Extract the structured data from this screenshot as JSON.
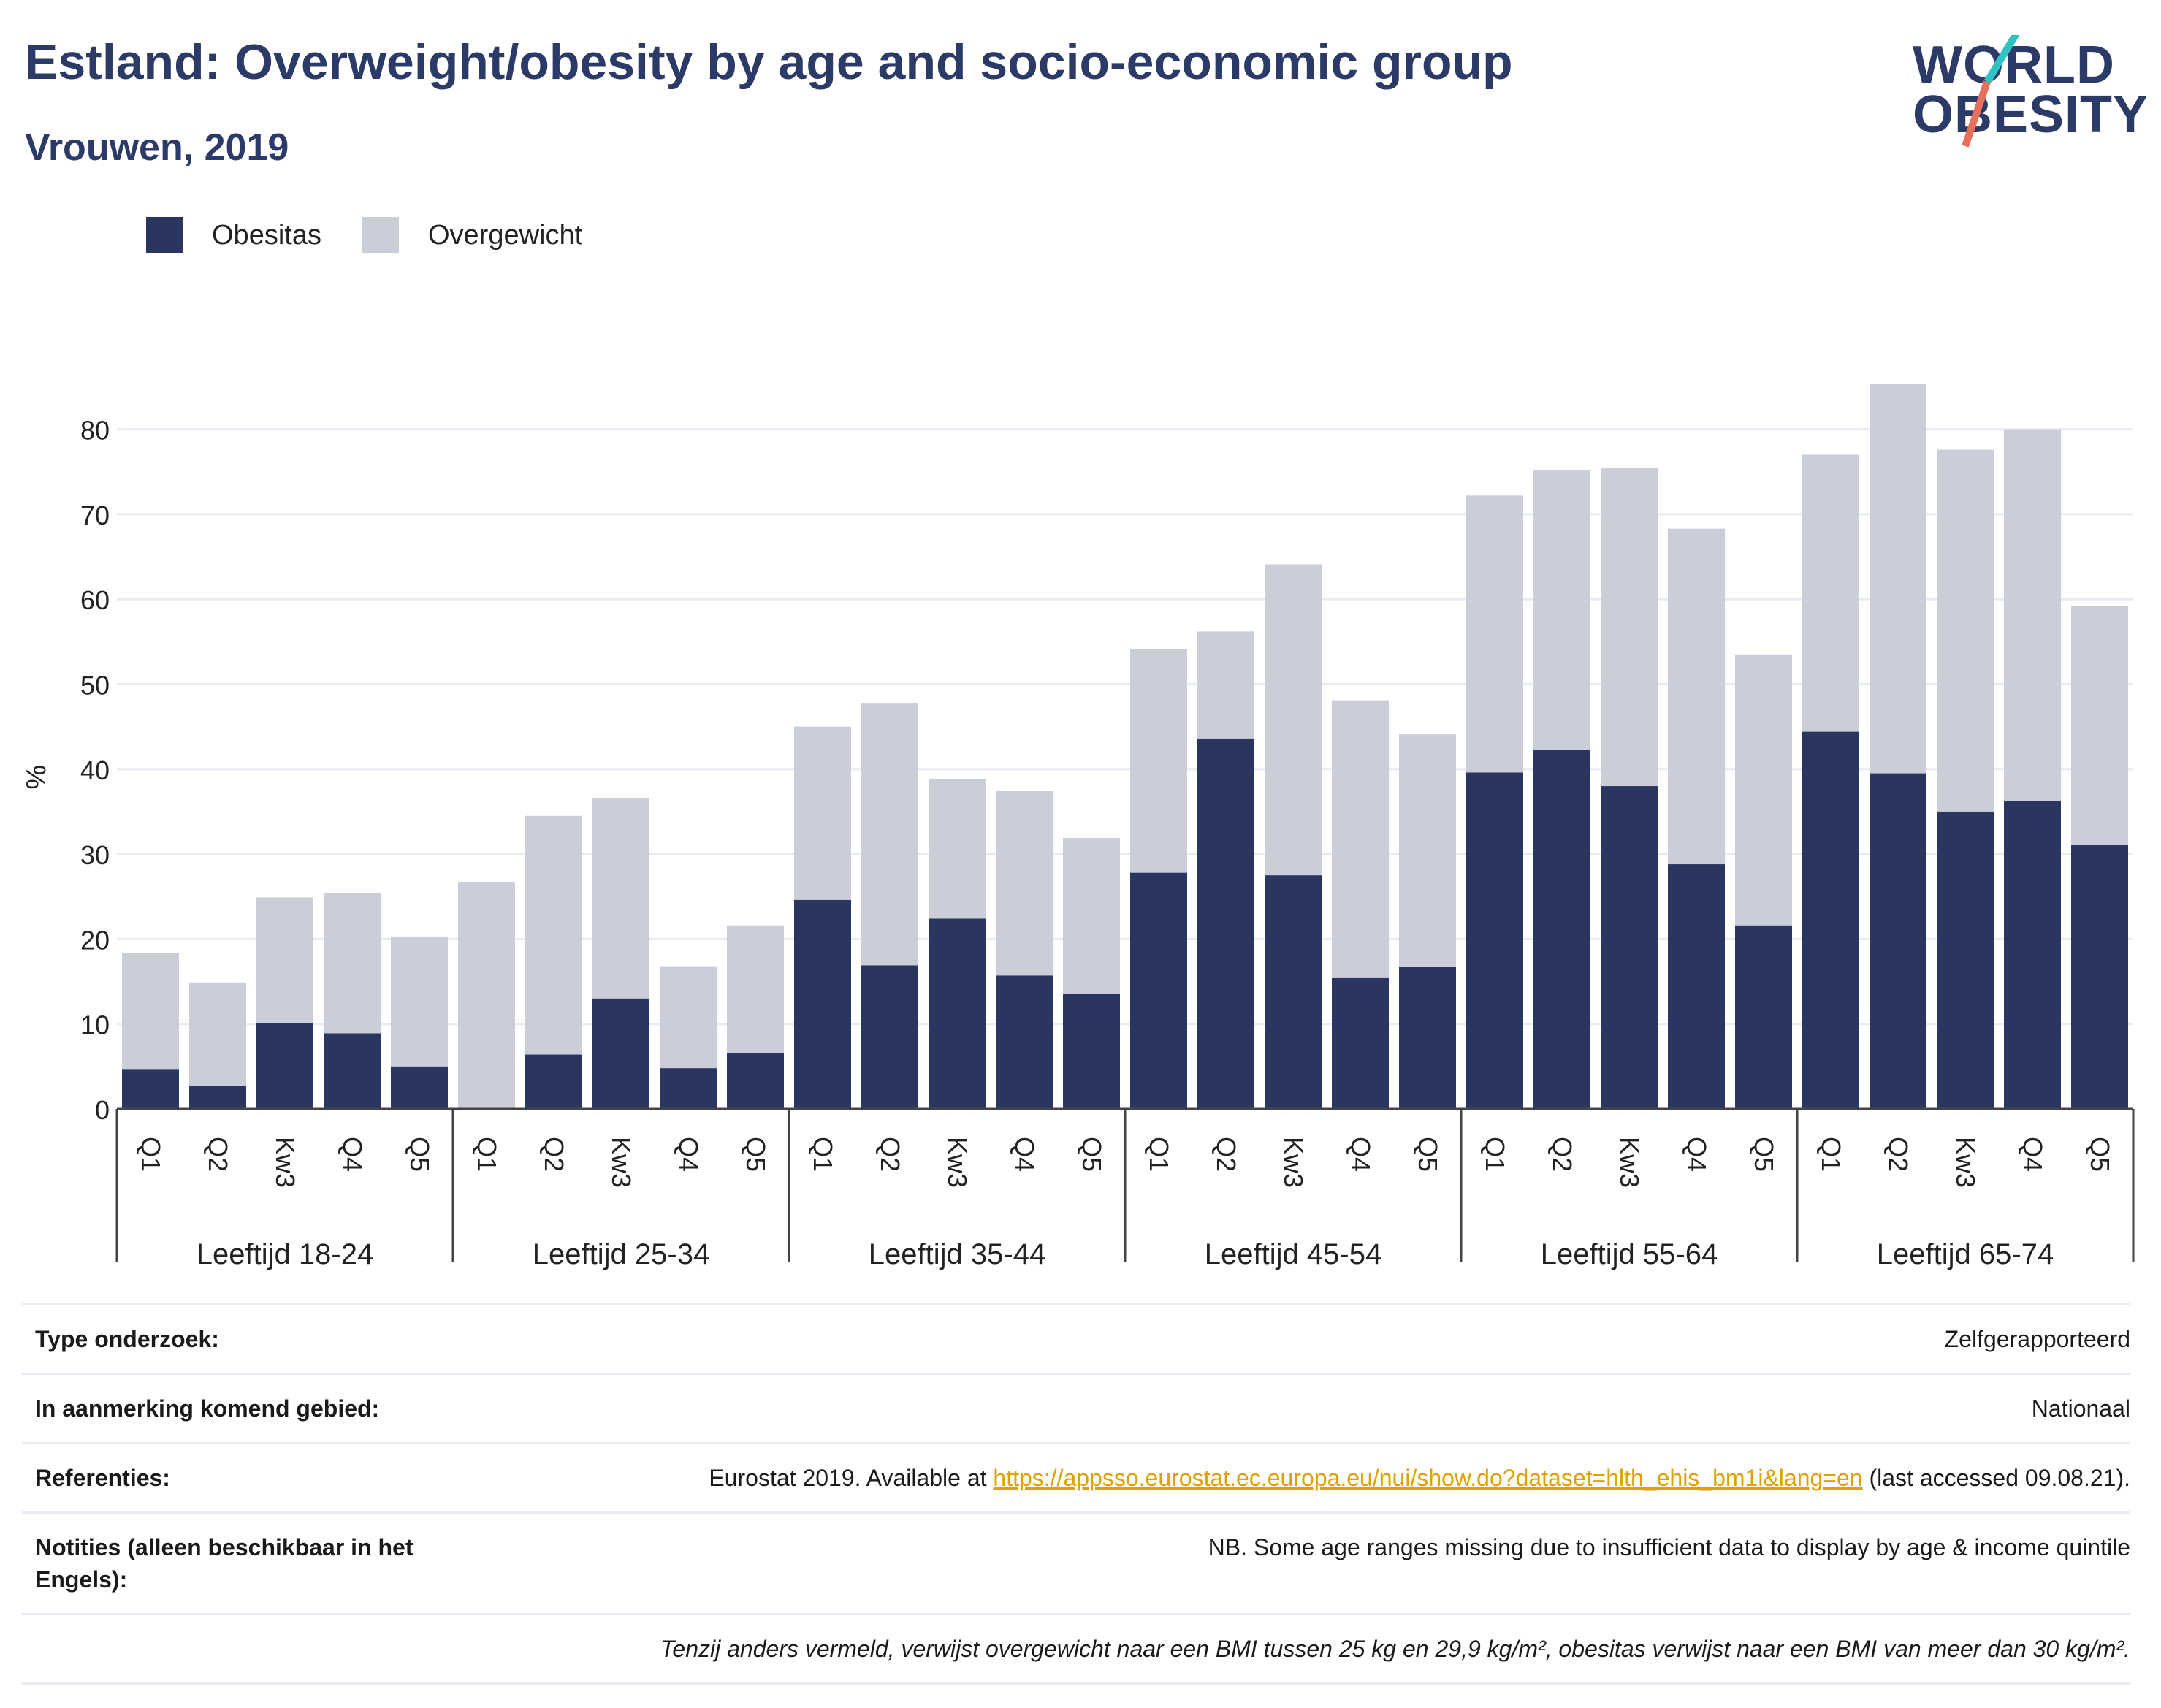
{
  "title": "Estland: Overweight/obesity by age and socio-economic group",
  "subtitle": "Vrouwen, 2019",
  "logo": {
    "line1": "WORLD",
    "line2": "OBESITY"
  },
  "legend": [
    {
      "label": "Obesitas",
      "color": "#2b3660"
    },
    {
      "label": "Overgewicht",
      "color": "#cbcdd9"
    }
  ],
  "chart_data": {
    "type": "bar",
    "stacked": true,
    "ylabel": "%",
    "ylim": [
      0,
      85
    ],
    "yticks": [
      0,
      10,
      20,
      30,
      40,
      50,
      60,
      70,
      80
    ],
    "grid": true,
    "legend_position": "top-left",
    "groups": [
      {
        "label": "Leeftijd 18-24",
        "categories": [
          "Q1",
          "Q2",
          "Kw3",
          "Q4",
          "Q5"
        ],
        "obesitas": [
          4.7,
          2.7,
          10.1,
          8.9,
          5.0
        ],
        "total": [
          18.4,
          14.9,
          24.9,
          25.4,
          20.3
        ]
      },
      {
        "label": "Leeftijd 25-34",
        "categories": [
          "Q1",
          "Q2",
          "Kw3",
          "Q4",
          "Q5"
        ],
        "obesitas": [
          0.0,
          6.4,
          13.0,
          4.8,
          6.6
        ],
        "total": [
          26.7,
          34.5,
          36.6,
          16.8,
          21.6
        ]
      },
      {
        "label": "Leeftijd 35-44",
        "categories": [
          "Q1",
          "Q2",
          "Kw3",
          "Q4",
          "Q5"
        ],
        "obesitas": [
          24.6,
          16.9,
          22.4,
          15.7,
          13.5
        ],
        "total": [
          45.0,
          47.8,
          38.8,
          37.4,
          31.9
        ]
      },
      {
        "label": "Leeftijd 45-54",
        "categories": [
          "Q1",
          "Q2",
          "Kw3",
          "Q4",
          "Q5"
        ],
        "obesitas": [
          27.8,
          43.6,
          27.5,
          15.4,
          16.7
        ],
        "total": [
          54.1,
          56.2,
          64.1,
          48.1,
          44.1
        ]
      },
      {
        "label": "Leeftijd 55-64",
        "categories": [
          "Q1",
          "Q2",
          "Kw3",
          "Q4",
          "Q5"
        ],
        "obesitas": [
          39.6,
          42.3,
          38.0,
          28.8,
          21.6
        ],
        "total": [
          72.2,
          75.2,
          75.5,
          68.3,
          53.5
        ]
      },
      {
        "label": "Leeftijd 65-74",
        "categories": [
          "Q1",
          "Q2",
          "Kw3",
          "Q4",
          "Q5"
        ],
        "obesitas": [
          44.4,
          39.5,
          35.0,
          36.2,
          31.1
        ],
        "total": [
          77.0,
          85.3,
          77.6,
          80.0,
          59.2
        ]
      }
    ],
    "series": [
      {
        "name": "Obesitas",
        "key": "obesitas"
      },
      {
        "name": "Overgewicht",
        "key": "total_minus_obesitas"
      }
    ]
  },
  "info": {
    "survey_type": {
      "label": "Type onderzoek:",
      "value": "Zelfgerapporteerd"
    },
    "area": {
      "label": "In aanmerking komend gebied:",
      "value": "Nationaal"
    },
    "references": {
      "label": "Referenties:",
      "prefix": "Eurostat 2019. Available at ",
      "link": "https://appsso.eurostat.ec.europa.eu/nui/show.do?dataset=hlth_ehis_bm1i&lang=en",
      "suffix": " (last accessed 09.08.21)."
    },
    "notes": {
      "label": "Notities (alleen beschikbaar in het Engels):",
      "value": "NB. Some age ranges missing due to insufficient data to display by age & income quintile"
    },
    "footnote": "Tenzij anders vermeld, verwijst overgewicht naar een BMI tussen 25 kg en 29,9 kg/m², obesitas verwijst naar een BMI van meer dan 30 kg/m²."
  }
}
